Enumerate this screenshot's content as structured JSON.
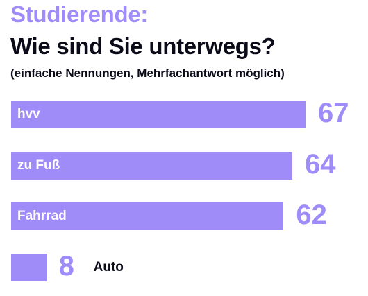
{
  "header": {
    "title": "Studierende:",
    "subtitle": "Wie sind Sie unterwegs?",
    "note": "(einfache Nennungen, Mehrfachantwort möglich)"
  },
  "colors": {
    "accent": "#a08cf9",
    "text": "#0a0a18",
    "bar_label": "#ffffff"
  },
  "chart_data": {
    "type": "bar",
    "orientation": "horizontal",
    "title": "Studierende:",
    "subtitle": "Wie sind Sie unterwegs?",
    "note": "(einfache Nennungen, Mehrfachantwort möglich)",
    "categories": [
      "hvv",
      "zu Fuß",
      "Fahrrad",
      "Auto"
    ],
    "values": [
      67,
      64,
      62,
      8
    ],
    "grid": false,
    "legend": "none"
  }
}
